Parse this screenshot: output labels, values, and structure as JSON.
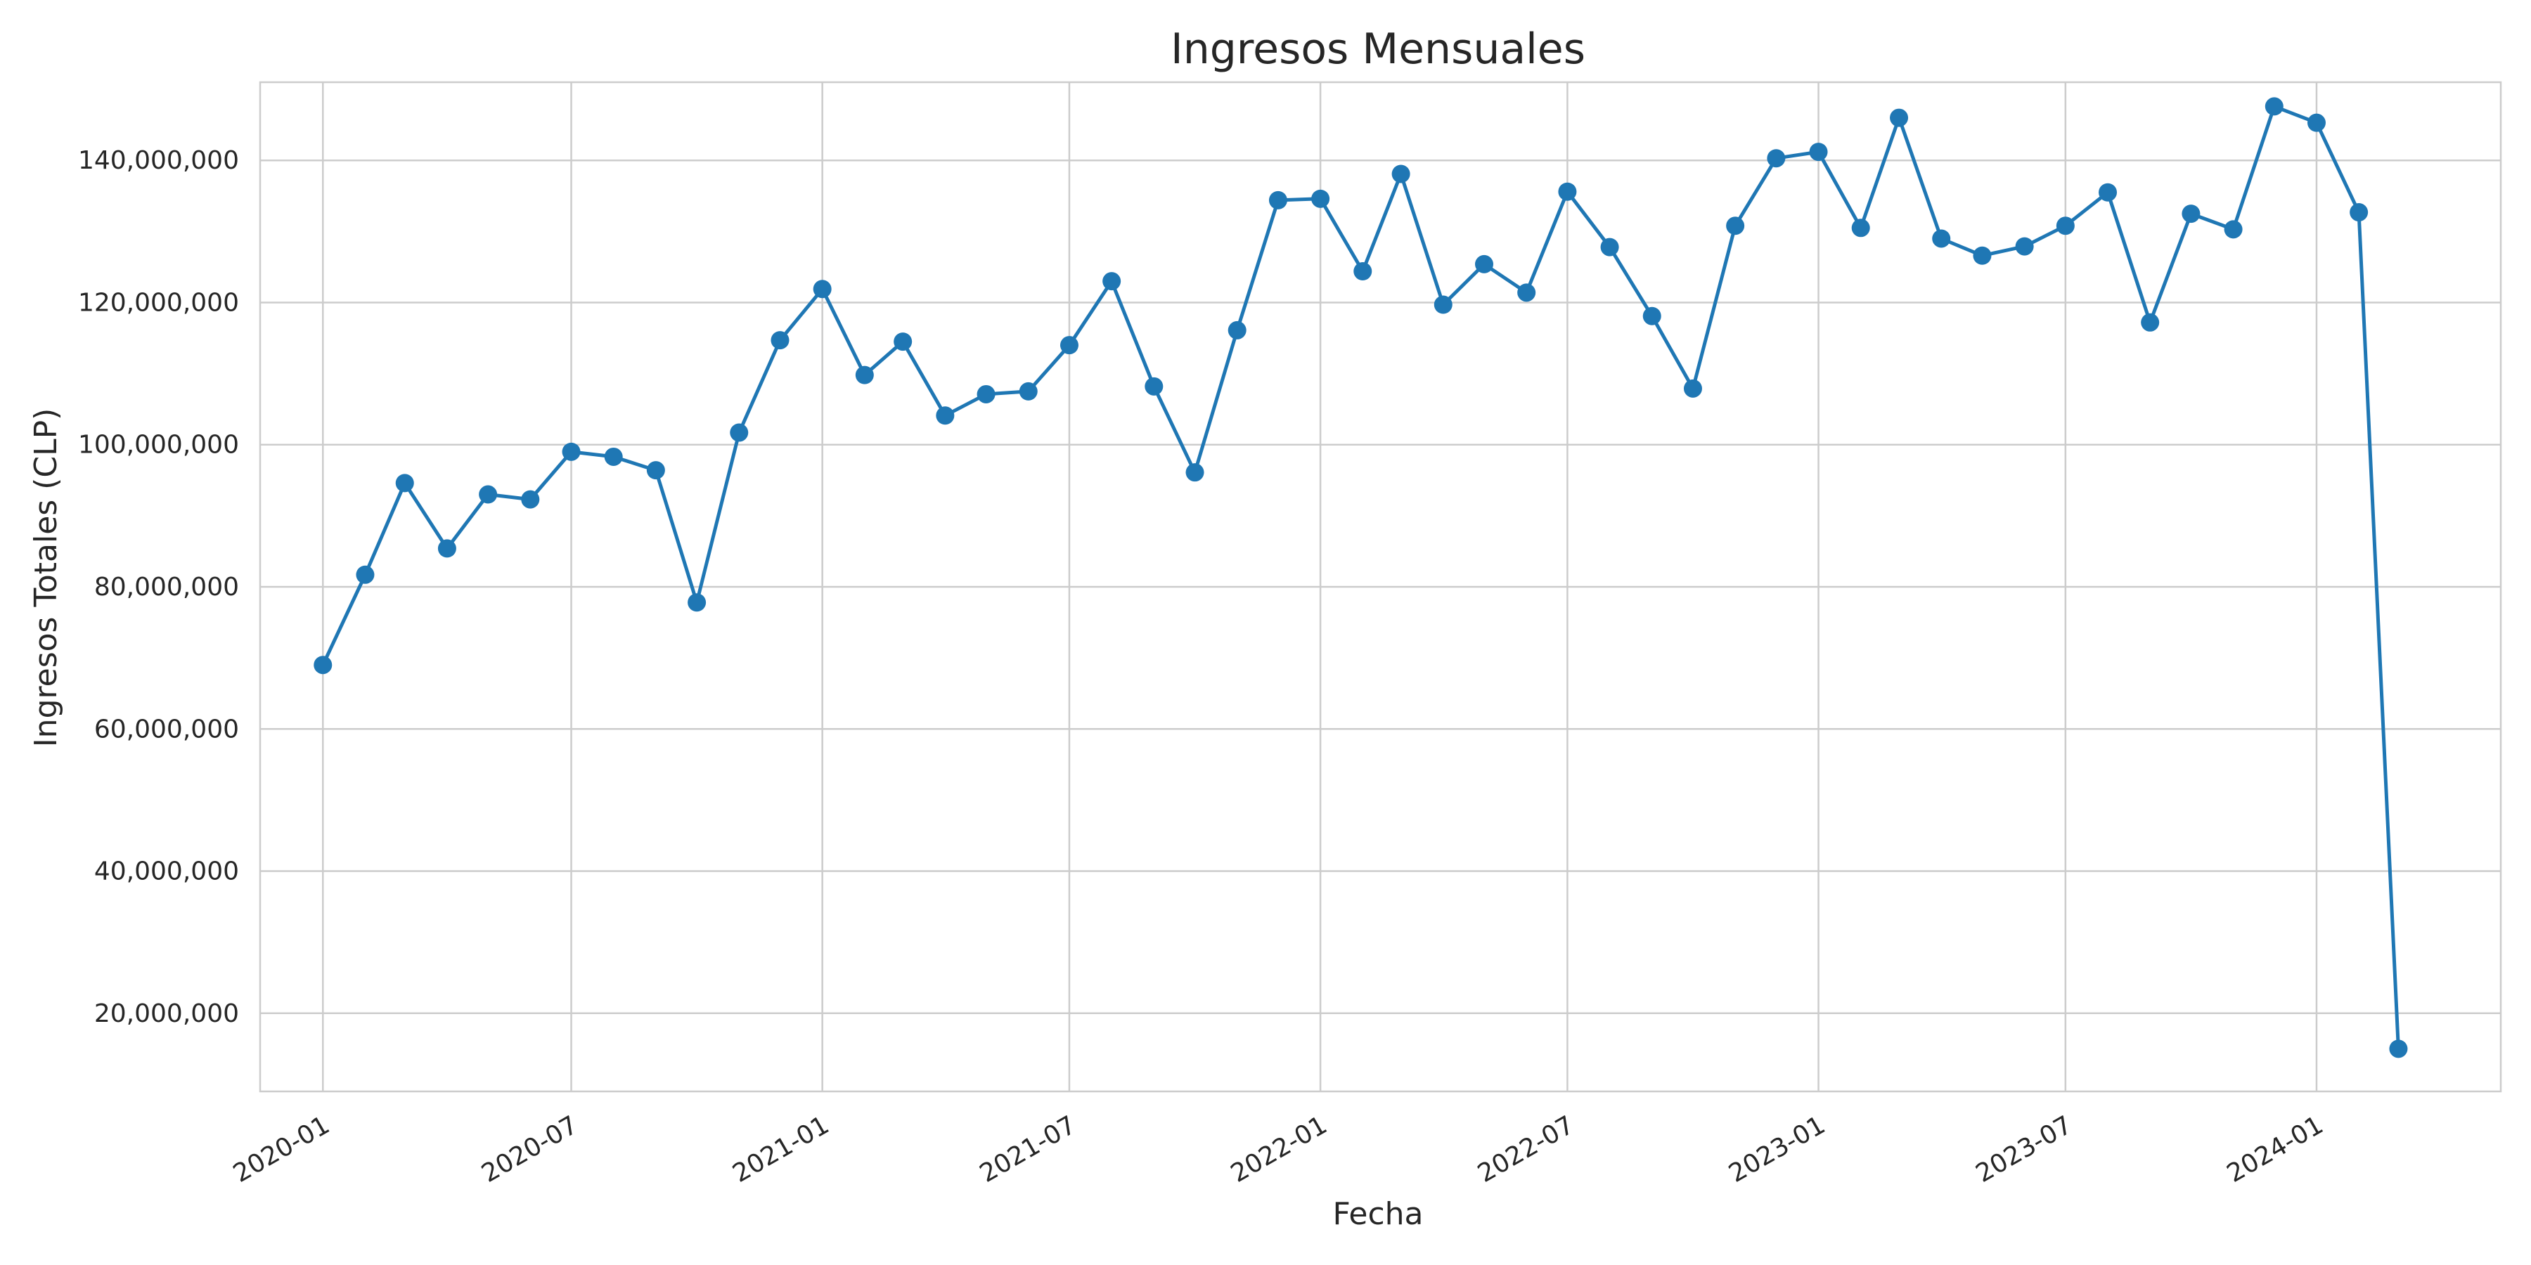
{
  "chart_data": {
    "type": "line",
    "title": "Ingresos Mensuales",
    "xlabel": "Fecha",
    "ylabel": "Ingresos Totales (CLP)",
    "x_ticks": [
      "2020-01",
      "2020-07",
      "2021-01",
      "2021-07",
      "2022-01",
      "2022-07",
      "2023-01",
      "2023-07",
      "2024-01"
    ],
    "y_ticks": [
      20000000,
      40000000,
      60000000,
      80000000,
      100000000,
      120000000,
      140000000
    ],
    "y_tick_labels": [
      "20,000,000",
      "40,000,000",
      "60,000,000",
      "80,000,000",
      "100,000,000",
      "120,000,000",
      "140,000,000"
    ],
    "xlim": [
      "2019-11-16",
      "2024-05-15"
    ],
    "ylim": [
      9000000,
      151000000
    ],
    "grid": true,
    "color": "#1f77b4",
    "x": [
      "2020-01",
      "2020-02",
      "2020-03",
      "2020-04",
      "2020-05",
      "2020-06",
      "2020-07",
      "2020-08",
      "2020-09",
      "2020-10",
      "2020-11",
      "2020-12",
      "2021-01",
      "2021-02",
      "2021-03",
      "2021-04",
      "2021-05",
      "2021-06",
      "2021-07",
      "2021-08",
      "2021-09",
      "2021-10",
      "2021-11",
      "2021-12",
      "2022-01",
      "2022-02",
      "2022-03",
      "2022-04",
      "2022-05",
      "2022-06",
      "2022-07",
      "2022-08",
      "2022-09",
      "2022-10",
      "2022-11",
      "2022-12",
      "2023-01",
      "2023-02",
      "2023-03",
      "2023-04",
      "2023-05",
      "2023-06",
      "2023-07",
      "2023-08",
      "2023-09",
      "2023-10",
      "2023-11",
      "2023-12",
      "2024-01",
      "2024-02",
      "2024-03"
    ],
    "series": [
      {
        "values": [
          69000000,
          81700000,
          94600000,
          85400000,
          93000000,
          92300000,
          99000000,
          98300000,
          96400000,
          77800000,
          101700000,
          114700000,
          121900000,
          109800000,
          114500000,
          104100000,
          107100000,
          107500000,
          114000000,
          123000000,
          108200000,
          96100000,
          116100000,
          134400000,
          134600000,
          124400000,
          138100000,
          119700000,
          125400000,
          121400000,
          135600000,
          127800000,
          118100000,
          107900000,
          130800000,
          140300000,
          141200000,
          130500000,
          146000000,
          129000000,
          126600000,
          127900000,
          130800000,
          135500000,
          117200000,
          132500000,
          130300000,
          147600000,
          145300000,
          132700000,
          15000000
        ]
      }
    ]
  }
}
